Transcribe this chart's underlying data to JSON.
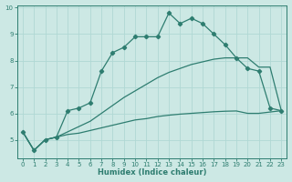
{
  "xlabel": "Humidex (Indice chaleur)",
  "bg_color": "#cce8e4",
  "grid_color": "#b0d8d4",
  "line_color": "#2e7d70",
  "xlim": [
    -0.5,
    23.5
  ],
  "ylim": [
    4.3,
    10.1
  ],
  "yticks": [
    5,
    6,
    7,
    8,
    9,
    10
  ],
  "xticks": [
    0,
    1,
    2,
    3,
    4,
    5,
    6,
    7,
    8,
    9,
    10,
    11,
    12,
    13,
    14,
    15,
    16,
    17,
    18,
    19,
    20,
    21,
    22,
    23
  ],
  "s1_x": [
    0,
    1,
    2,
    3,
    4,
    5,
    6,
    7,
    8,
    9,
    10,
    11,
    12,
    13,
    14,
    15,
    16,
    17,
    18,
    19,
    20,
    21,
    22,
    23
  ],
  "s1_y": [
    5.3,
    4.6,
    5.0,
    5.1,
    6.1,
    6.2,
    6.4,
    7.6,
    8.3,
    8.5,
    8.9,
    8.9,
    8.9,
    9.8,
    9.4,
    9.6,
    9.4,
    9.0,
    8.6,
    8.1,
    7.7,
    7.6,
    6.2,
    6.1
  ],
  "s2_x": [
    0,
    1,
    2,
    3,
    4,
    5,
    6,
    7,
    8,
    9,
    10,
    11,
    12,
    13,
    14,
    15,
    16,
    17,
    18,
    19,
    20,
    21,
    22,
    23
  ],
  "s2_y": [
    5.3,
    4.6,
    5.0,
    5.1,
    5.3,
    5.5,
    5.7,
    6.0,
    6.3,
    6.6,
    6.85,
    7.1,
    7.35,
    7.55,
    7.7,
    7.85,
    7.95,
    8.05,
    8.1,
    8.1,
    8.1,
    7.75,
    7.75,
    6.1
  ],
  "s3_x": [
    0,
    1,
    2,
    3,
    4,
    5,
    6,
    7,
    8,
    9,
    10,
    11,
    12,
    13,
    14,
    15,
    16,
    17,
    18,
    19,
    20,
    21,
    22,
    23
  ],
  "s3_y": [
    5.3,
    4.6,
    5.0,
    5.1,
    5.2,
    5.25,
    5.35,
    5.45,
    5.55,
    5.65,
    5.75,
    5.8,
    5.88,
    5.93,
    5.97,
    6.0,
    6.03,
    6.06,
    6.08,
    6.09,
    6.0,
    6.0,
    6.05,
    6.1
  ]
}
